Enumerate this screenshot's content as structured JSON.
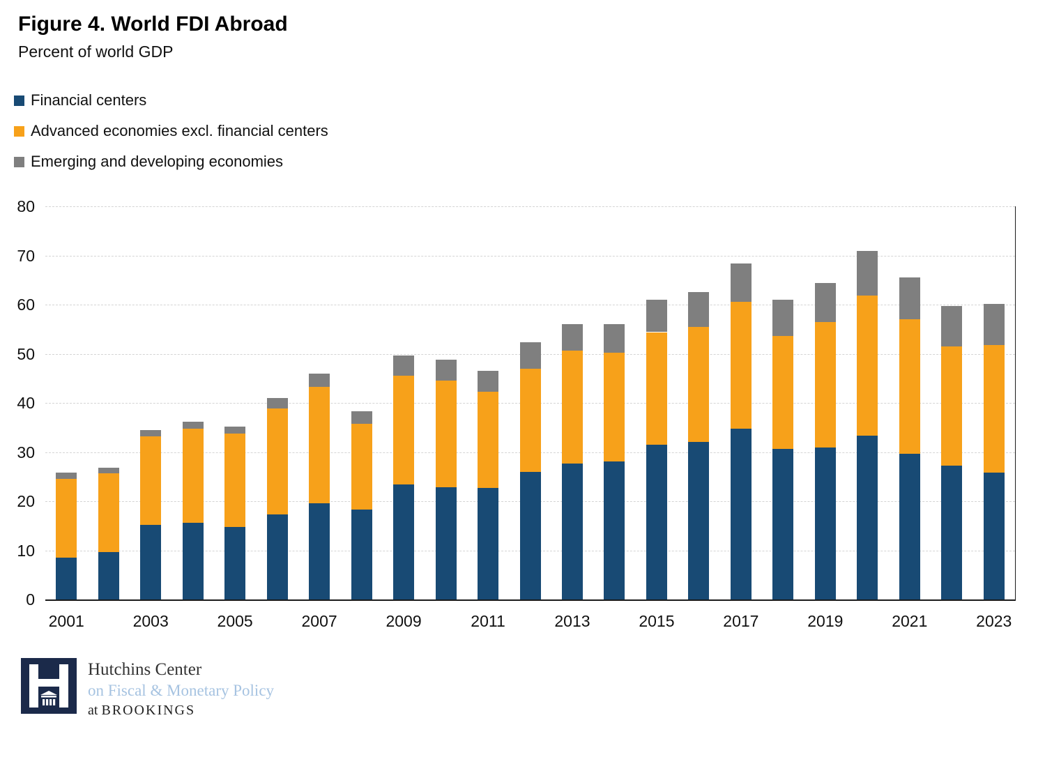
{
  "header": {
    "title": "Figure 4. World FDI Abroad",
    "subtitle": "Percent of world GDP"
  },
  "legend": [
    {
      "label": "Financial centers",
      "color": "#184A74"
    },
    {
      "label": "Advanced economies excl. financial centers",
      "color": "#F7A11A"
    },
    {
      "label": "Emerging and developing economies",
      "color": "#7F7F7F"
    }
  ],
  "chart_data": {
    "type": "bar",
    "stacked": true,
    "title": "Figure 4. World FDI Abroad",
    "subtitle": "Percent of world GDP",
    "ylabel": "Percent of world GDP",
    "xlabel": "",
    "ylim": [
      0,
      80
    ],
    "yticks": [
      0,
      10,
      20,
      30,
      40,
      50,
      60,
      70,
      80
    ],
    "grid": "dashed-horizontal",
    "legend_position": "top-left",
    "xtick_every": 2,
    "categories": [
      "2001",
      "2002",
      "2003",
      "2004",
      "2005",
      "2006",
      "2007",
      "2008",
      "2009",
      "2010",
      "2011",
      "2012",
      "2013",
      "2014",
      "2015",
      "2016",
      "2017",
      "2018",
      "2019",
      "2020",
      "2021",
      "2022",
      "2023"
    ],
    "series": [
      {
        "name": "Financial centers",
        "color": "#184A74",
        "values": [
          8.5,
          9.7,
          15.2,
          15.6,
          14.7,
          17.3,
          19.6,
          18.3,
          23.4,
          22.8,
          22.7,
          26.0,
          27.6,
          28.1,
          31.5,
          32.0,
          34.7,
          30.7,
          30.9,
          33.4,
          29.6,
          27.2,
          25.8
        ]
      },
      {
        "name": "Advanced economies excl. financial centers",
        "color": "#F7A11A",
        "values": [
          16.0,
          16.0,
          18.0,
          19.2,
          19.0,
          21.5,
          23.6,
          17.5,
          22.2,
          21.8,
          19.6,
          21.0,
          23.0,
          22.1,
          22.9,
          23.5,
          25.9,
          22.9,
          25.6,
          28.4,
          27.4,
          24.3,
          26.0
        ]
      },
      {
        "name": "Emerging and developing economies",
        "color": "#7F7F7F",
        "values": [
          1.3,
          1.1,
          1.3,
          1.4,
          1.5,
          2.2,
          2.8,
          2.5,
          4.0,
          4.2,
          4.2,
          5.3,
          5.5,
          5.8,
          6.6,
          7.1,
          7.8,
          7.4,
          7.9,
          9.1,
          8.5,
          8.2,
          8.4
        ]
      }
    ]
  },
  "footer": {
    "line1": "Hutchins Center",
    "line2": "on Fiscal & Monetary Policy",
    "line3_prefix": "at ",
    "line3_brand": "BROOKINGS"
  }
}
